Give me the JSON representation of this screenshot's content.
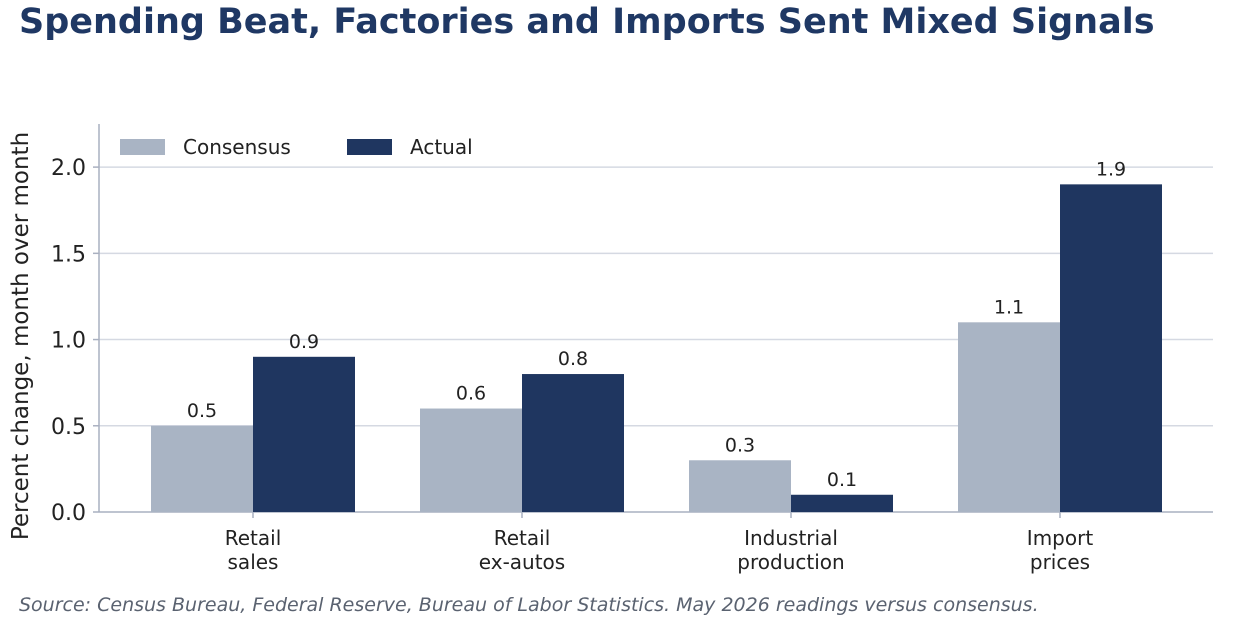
{
  "title": "Spending Beat, Factories and Imports Sent Mixed Signals",
  "source": "Source: Census Bureau, Federal Reserve, Bureau of Labor Statistics. May 2026 readings versus consensus.",
  "colors": {
    "consensus": "#a9b4c4",
    "actual": "#1f3660",
    "title": "#1f3864",
    "grid": "#d5d9e2",
    "axis": "#a9b0c0"
  },
  "chart_data": {
    "type": "bar",
    "title": "Spending Beat, Factories and Imports Sent Mixed Signals",
    "xlabel": "",
    "ylabel": "Percent change, month over month",
    "categories": [
      [
        "Retail",
        "sales"
      ],
      [
        "Retail",
        "ex-autos"
      ],
      [
        "Industrial",
        "production"
      ],
      [
        "Import",
        "prices"
      ]
    ],
    "series": [
      {
        "name": "Consensus",
        "values": [
          0.5,
          0.6,
          0.3,
          1.1
        ],
        "labels": [
          "0.5",
          "0.6",
          "0.3",
          "1.1"
        ]
      },
      {
        "name": "Actual",
        "values": [
          0.9,
          0.8,
          0.1,
          1.9
        ],
        "labels": [
          "0.9",
          "0.8",
          "0.1",
          "1.9"
        ]
      }
    ],
    "ylim": [
      0,
      2.25
    ],
    "yticks": [
      0.0,
      0.5,
      1.0,
      1.5,
      2.0
    ],
    "ytick_labels": [
      "0.0",
      "0.5",
      "1.0",
      "1.5",
      "2.0"
    ],
    "grid": true,
    "legend_position": "top-left"
  }
}
